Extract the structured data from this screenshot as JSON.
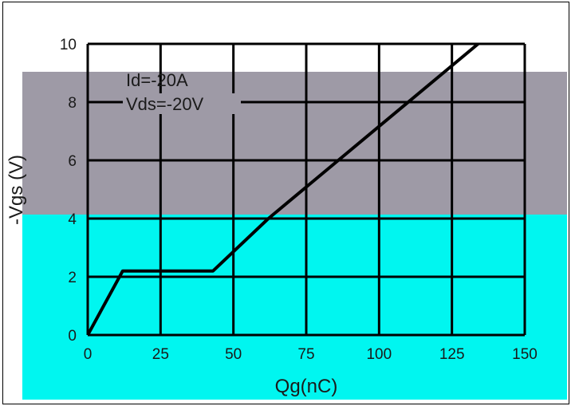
{
  "chart_data": {
    "type": "line",
    "title": "",
    "xlabel": "Qg(nC)",
    "ylabel": "-Vgs (V)",
    "xlim": [
      0,
      150
    ],
    "ylim": [
      0,
      10
    ],
    "xticks": [
      "0",
      "25",
      "50",
      "75",
      "100",
      "125",
      "150"
    ],
    "yticks": [
      "0",
      "2",
      "4",
      "6",
      "8",
      "10"
    ],
    "grid": true,
    "annotations": [
      "Id=-20A",
      "Vds=-20V"
    ],
    "series": [
      {
        "x": [
          0,
          12,
          43,
          62,
          134
        ],
        "y": [
          0,
          2.2,
          2.2,
          4.0,
          10.0
        ]
      }
    ],
    "colors": {
      "line": "#000000",
      "grid": "#000000",
      "background_upper": "#9e9aa6",
      "background_lower": "#00f6f0"
    }
  }
}
